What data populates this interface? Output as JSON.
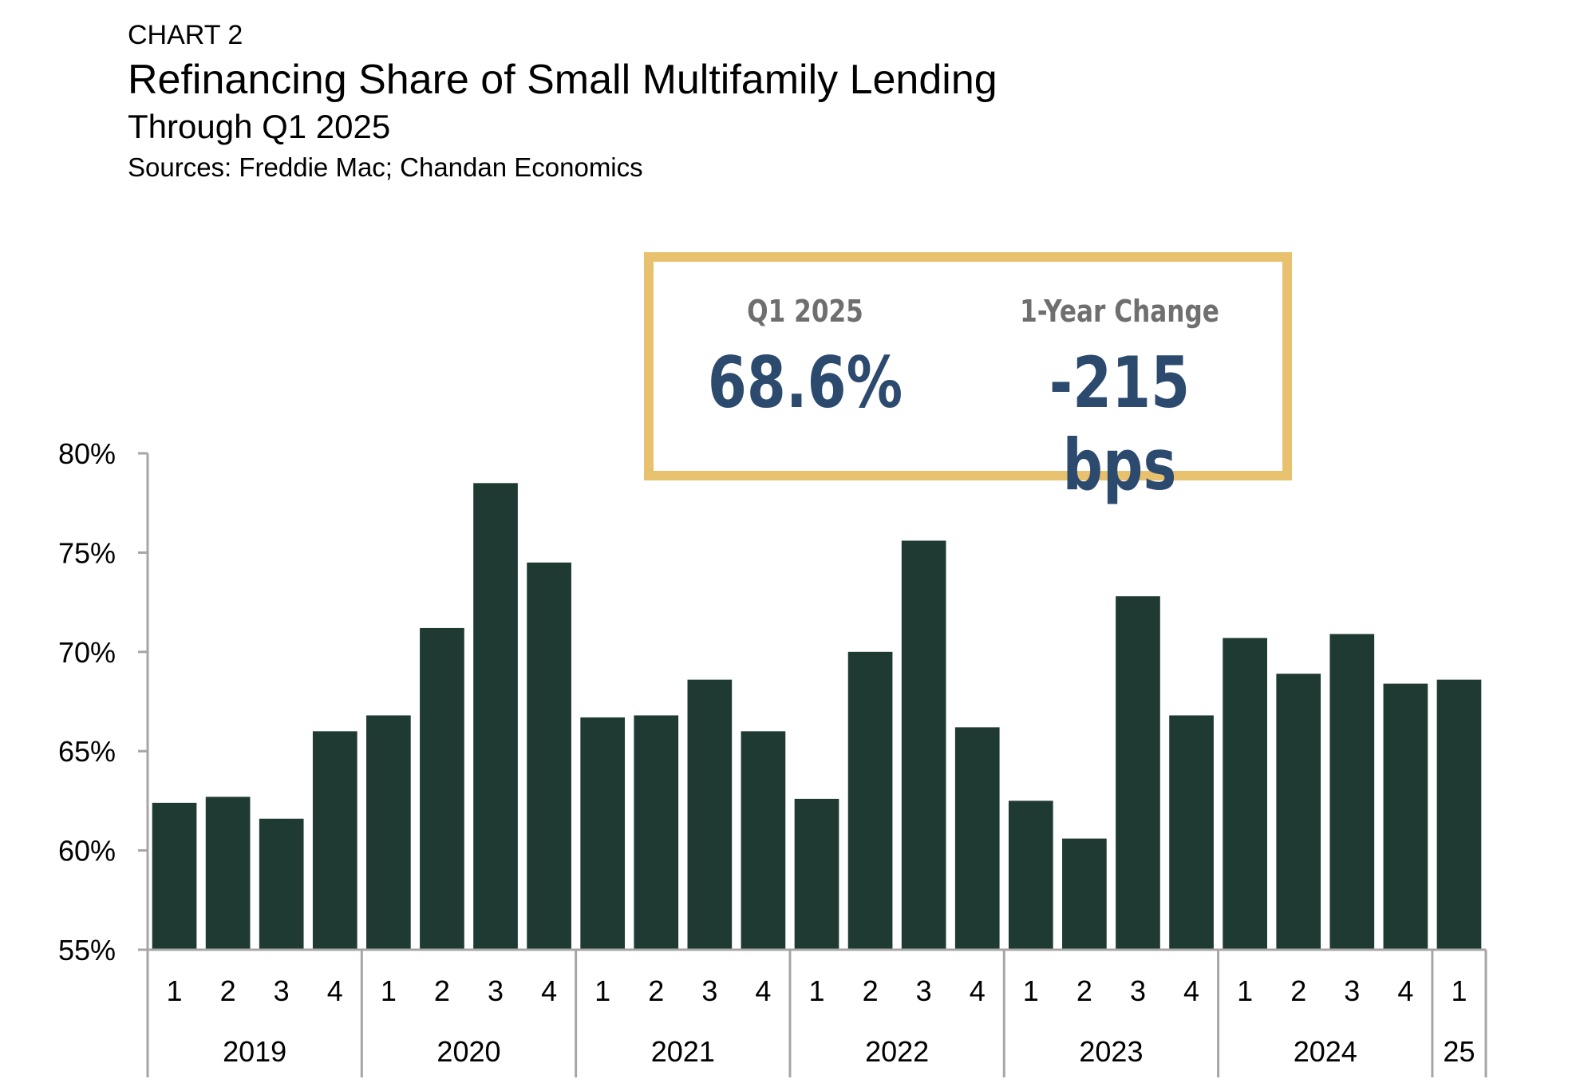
{
  "header": {
    "chart_label": "CHART 2",
    "title": "Refinancing Share of Small Multifamily Lending",
    "subtitle": "Through Q1 2025",
    "source": "Sources: Freddie Mac; Chandan Economics"
  },
  "kpi": {
    "left_label": "Q1 2025",
    "left_value": "68.6%",
    "right_label": "1-Year Change",
    "right_value": "-215 bps"
  },
  "colors": {
    "bar": "#1f3a32",
    "axis": "#a6a6a6",
    "kpi_border": "#e8c16f",
    "kpi_value": "#2c4a6e",
    "kpi_label": "#6f6f6f"
  },
  "chart_data": {
    "type": "bar",
    "ylim": [
      55,
      80
    ],
    "yticks": [
      55,
      60,
      65,
      70,
      75,
      80
    ],
    "ytick_labels": [
      "55%",
      "60%",
      "65%",
      "70%",
      "75%",
      "80%"
    ],
    "grid": false,
    "categories": [
      "1",
      "2",
      "3",
      "4",
      "1",
      "2",
      "3",
      "4",
      "1",
      "2",
      "3",
      "4",
      "1",
      "2",
      "3",
      "4",
      "1",
      "2",
      "3",
      "4",
      "1",
      "2",
      "3",
      "4",
      "1"
    ],
    "groups": [
      {
        "label": "2019",
        "count": 4
      },
      {
        "label": "2020",
        "count": 4
      },
      {
        "label": "2021",
        "count": 4
      },
      {
        "label": "2022",
        "count": 4
      },
      {
        "label": "2023",
        "count": 4
      },
      {
        "label": "2024",
        "count": 4
      },
      {
        "label": "25",
        "count": 1
      }
    ],
    "values": [
      62.4,
      62.7,
      61.6,
      66.0,
      66.8,
      71.2,
      78.5,
      74.5,
      66.7,
      66.8,
      68.6,
      66.0,
      62.6,
      70.0,
      75.6,
      66.2,
      62.5,
      60.6,
      72.8,
      66.8,
      70.7,
      68.9,
      70.9,
      68.4,
      68.6
    ]
  }
}
